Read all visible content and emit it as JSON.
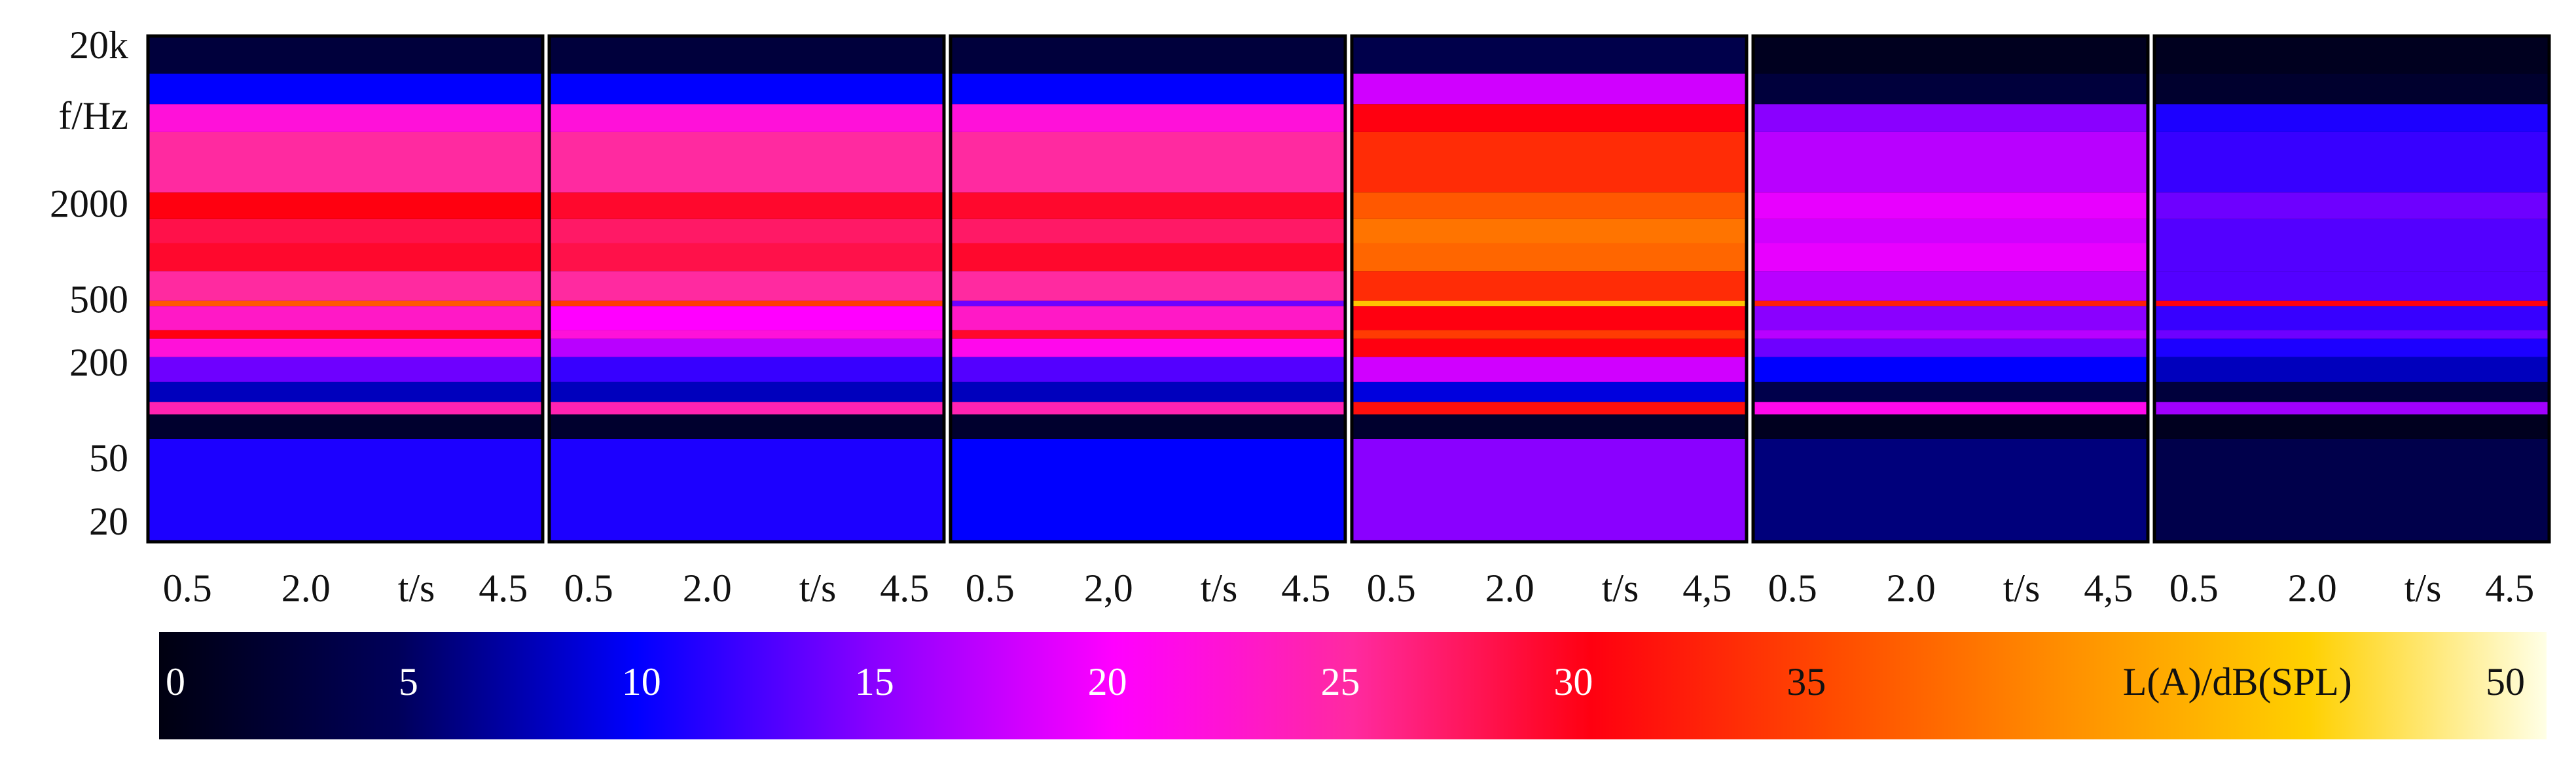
{
  "chart_data": {
    "type": "heatmap",
    "y_scale": "log",
    "ylim": [
      20,
      20000
    ],
    "yticks": [
      {
        "value": 20000,
        "label": "20k"
      },
      2000,
      500,
      200,
      50,
      20
    ],
    "ylabel": "f/Hz",
    "xlim": [
      0,
      5
    ],
    "band_edges": [
      20,
      70,
      100,
      120,
      160,
      230,
      300,
      340,
      480,
      520,
      800,
      1200,
      1700,
      2500,
      6000,
      9000,
      14000,
      20000
    ],
    "panels": [
      {
        "xticks": [
          0.5,
          {
            "value": 2,
            "label": "2.0"
          },
          4.5
        ],
        "xlabel": "t/s",
        "levels": [
          11,
          2,
          24,
          8,
          14,
          22,
          30,
          23,
          36,
          25,
          29,
          28,
          30,
          25,
          22,
          10,
          3
        ]
      },
      {
        "xticks": [
          0.5,
          {
            "value": 2,
            "label": "2.0"
          },
          4.5
        ],
        "xlabel": "t/s",
        "levels": [
          11,
          2,
          24,
          8,
          12,
          17,
          22,
          20,
          34,
          25,
          28,
          27,
          29,
          25,
          22,
          10,
          3
        ]
      },
      {
        "xticks": [
          0.5,
          {
            "value": 2,
            "label": "2,0"
          },
          4.5
        ],
        "xlabel": "t/s",
        "levels": [
          10,
          2,
          24,
          8,
          13,
          21,
          29,
          23,
          14,
          25,
          29,
          27,
          29,
          25,
          22,
          10,
          3
        ]
      },
      {
        "xticks": [
          0.5,
          {
            "value": 2,
            "label": "2.0"
          },
          {
            "value": 4.5,
            "label": "4,5"
          }
        ],
        "xlabel": "t/s",
        "levels": [
          15,
          2,
          31,
          9,
          18,
          30,
          34,
          30,
          44,
          33,
          37,
          38,
          36,
          33,
          30,
          18,
          4
        ]
      },
      {
        "xticks": [
          0.5,
          {
            "value": 2,
            "label": "2.0"
          },
          {
            "value": 4.5,
            "label": "4,5"
          }
        ],
        "xlabel": "t/s",
        "levels": [
          6,
          1,
          21,
          4,
          10,
          14,
          17,
          15,
          32,
          17,
          19,
          18,
          19,
          17,
          15,
          3,
          1
        ]
      },
      {
        "xticks": [
          0.5,
          {
            "value": 2,
            "label": "2.0"
          },
          4.5
        ],
        "xlabel": "t/s",
        "levels": [
          4,
          1,
          16,
          3,
          8,
          11,
          14,
          12,
          30,
          13,
          13,
          13,
          14,
          12,
          11,
          2,
          1
        ]
      }
    ],
    "clim": [
      0,
      50
    ],
    "colormap": [
      "#000010",
      "#00005a",
      "#0000ff",
      "#8a00ff",
      "#ff00ff",
      "#ff2aa0",
      "#ff0010",
      "#ff4a00",
      "#ff9000",
      "#ffd000",
      "#ffffe6"
    ],
    "colorbar_ticks": [
      0,
      5,
      10,
      15,
      20,
      25,
      30,
      35,
      50
    ],
    "colorbar_label": "L(A)/dB(SPL)"
  }
}
